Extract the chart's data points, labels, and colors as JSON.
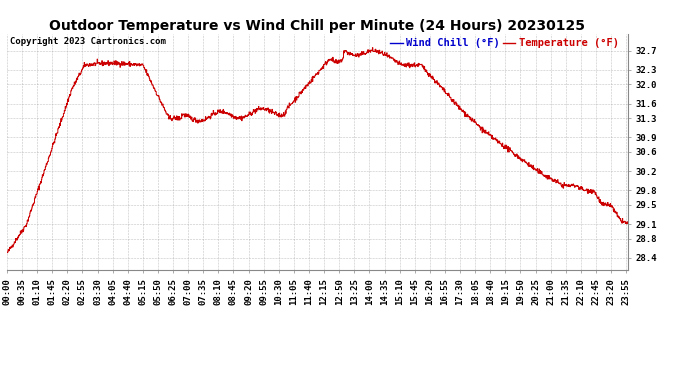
{
  "title": "Outdoor Temperature vs Wind Chill per Minute (24 Hours) 20230125",
  "copyright": "Copyright 2023 Cartronics.com",
  "legend_wind_chill": "Wind Chill (°F)",
  "legend_temperature": "Temperature (°F)",
  "wind_chill_color": "#0000cc",
  "temperature_color": "#cc0000",
  "line_color": "#cc0000",
  "background_color": "#ffffff",
  "grid_color": "#999999",
  "yticks": [
    28.4,
    28.8,
    29.1,
    29.5,
    29.8,
    30.2,
    30.6,
    30.9,
    31.3,
    31.6,
    32.0,
    32.3,
    32.7
  ],
  "ylim": [
    28.15,
    33.05
  ],
  "title_fontsize": 10,
  "copyright_fontsize": 6.5,
  "legend_fontsize": 7.5,
  "tick_fontsize": 6.5,
  "xtick_interval": 35,
  "n_minutes": 1440
}
